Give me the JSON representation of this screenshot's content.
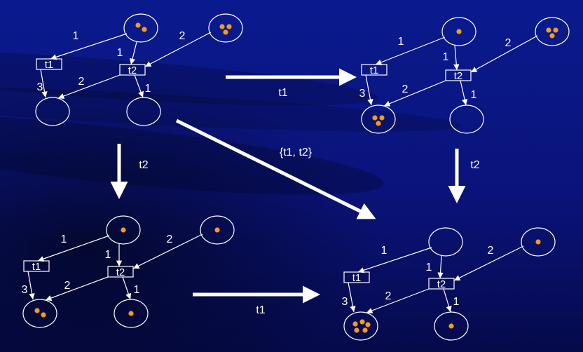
{
  "colors": {
    "background": "#0b1580",
    "stroke": "#ffffff",
    "token": "#f59a1b"
  },
  "nets": [
    {
      "id": "net-initial",
      "places": [
        {
          "name": "p-top-left",
          "tokens": 2
        },
        {
          "name": "p-top-right",
          "tokens": 3
        },
        {
          "name": "p-bottom-left",
          "tokens": 0
        },
        {
          "name": "p-bottom-right",
          "tokens": 0
        }
      ],
      "transitions": [
        {
          "name": "t1",
          "label": "t1"
        },
        {
          "name": "t2",
          "label": "t2"
        }
      ],
      "weights": {
        "p1_t1": "1",
        "p1_t2": "1",
        "p2_t2": "2",
        "t1_p3": "3",
        "t2_p3": "2",
        "t2_p4": "1"
      }
    },
    {
      "id": "net-after-t1",
      "places": [
        {
          "name": "p-top-left",
          "tokens": 1
        },
        {
          "name": "p-top-right",
          "tokens": 3
        },
        {
          "name": "p-bottom-left",
          "tokens": 3
        },
        {
          "name": "p-bottom-right",
          "tokens": 0
        }
      ],
      "transitions": [
        {
          "name": "t1",
          "label": "t1"
        },
        {
          "name": "t2",
          "label": "t2"
        }
      ],
      "weights": {
        "p1_t1": "1",
        "p1_t2": "1",
        "p2_t2": "2",
        "t1_p3": "3",
        "t2_p3": "2",
        "t2_p4": "1"
      }
    },
    {
      "id": "net-after-t2",
      "places": [
        {
          "name": "p-top-left",
          "tokens": 1
        },
        {
          "name": "p-top-right",
          "tokens": 1
        },
        {
          "name": "p-bottom-left",
          "tokens": 2
        },
        {
          "name": "p-bottom-right",
          "tokens": 1
        }
      ],
      "transitions": [
        {
          "name": "t1",
          "label": "t1"
        },
        {
          "name": "t2",
          "label": "t2"
        }
      ],
      "weights": {
        "p1_t1": "1",
        "p1_t2": "1",
        "p2_t2": "2",
        "t1_p3": "3",
        "t2_p3": "2",
        "t2_p4": "1"
      }
    },
    {
      "id": "net-final",
      "places": [
        {
          "name": "p-top-left",
          "tokens": 0
        },
        {
          "name": "p-top-right",
          "tokens": 1
        },
        {
          "name": "p-bottom-left",
          "tokens": 5
        },
        {
          "name": "p-bottom-right",
          "tokens": 1
        }
      ],
      "transitions": [
        {
          "name": "t1",
          "label": "t1"
        },
        {
          "name": "t2",
          "label": "t2"
        }
      ],
      "weights": {
        "p1_t1": "1",
        "p1_t2": "1",
        "p2_t2": "2",
        "t1_p3": "3",
        "t2_p3": "2",
        "t2_p4": "1"
      }
    }
  ],
  "firing_arrows": [
    {
      "name": "fire-t1-top",
      "label": "t1"
    },
    {
      "name": "fire-t2-left",
      "label": "t2"
    },
    {
      "name": "fire-t1t2-diagonal",
      "label": "{t1, t2}"
    },
    {
      "name": "fire-t2-right",
      "label": "t2"
    },
    {
      "name": "fire-t1-bottom",
      "label": "t1"
    }
  ]
}
